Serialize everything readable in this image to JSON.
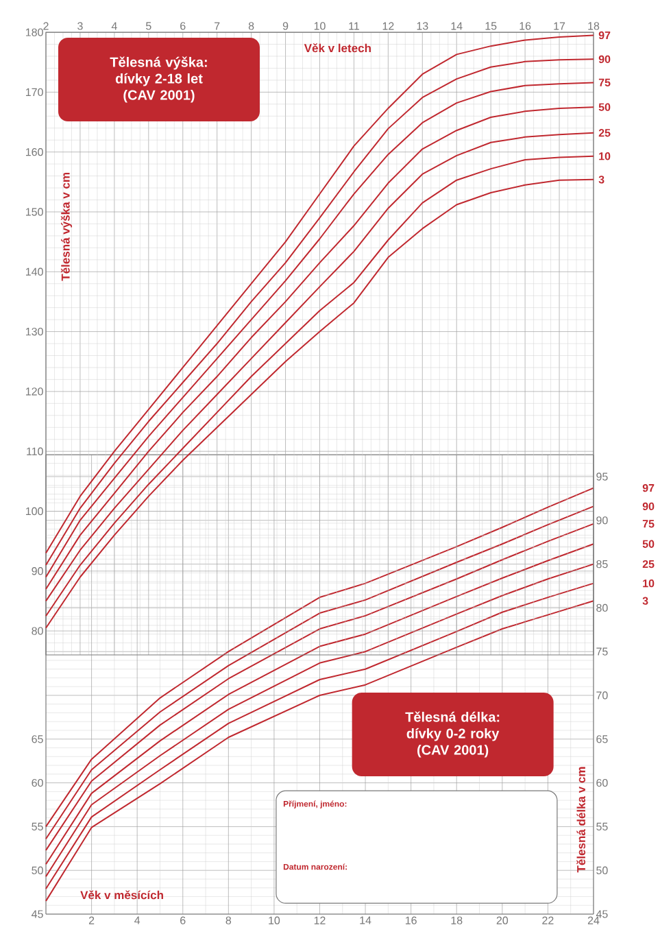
{
  "chart_data": [
    {
      "type": "line",
      "title": "Tělesná výška: dívky 2-18 let (CAV 2001)",
      "xlabel": "Věk v letech",
      "ylabel": "Tělesná výška v cm",
      "x": [
        2,
        3,
        4,
        5,
        6,
        7,
        8,
        9,
        10,
        11,
        12,
        13,
        14,
        15,
        16,
        17,
        18
      ],
      "xlim": [
        2,
        18
      ],
      "xticks": [
        2,
        3,
        4,
        5,
        6,
        7,
        8,
        9,
        10,
        11,
        12,
        13,
        14,
        15,
        16,
        17,
        18
      ],
      "ylim": [
        76,
        180
      ],
      "yticks": [
        80,
        90,
        100,
        110,
        120,
        130,
        140,
        150,
        160,
        170,
        180
      ],
      "grid": true,
      "series": [
        {
          "name": "97",
          "color": "#c0282f",
          "values": [
            93,
            102.5,
            110,
            117,
            124,
            131,
            138,
            145,
            153,
            161,
            167.3,
            173,
            176.3,
            177.7,
            178.7,
            179.2,
            179.5
          ]
        },
        {
          "name": "90",
          "color": "#c0282f",
          "values": [
            91,
            100.5,
            108,
            115,
            121.5,
            128,
            135,
            141.5,
            149,
            156.7,
            163.9,
            169.1,
            172.2,
            174.2,
            175.1,
            175.4,
            175.5
          ]
        },
        {
          "name": "75",
          "color": "#c0282f",
          "values": [
            89,
            98.5,
            105.5,
            112.5,
            119,
            125.5,
            132,
            138.5,
            145.5,
            153,
            159.6,
            164.9,
            168.2,
            170.1,
            171.1,
            171.4,
            171.6
          ]
        },
        {
          "name": "50",
          "color": "#c0282f",
          "values": [
            87,
            96,
            103,
            110,
            116.5,
            122.5,
            129,
            135,
            141.5,
            147.7,
            154.8,
            160.5,
            163.6,
            165.8,
            166.8,
            167.3,
            167.5
          ]
        },
        {
          "name": "25",
          "color": "#c0282f",
          "values": [
            85,
            93.5,
            100.5,
            107,
            113.5,
            119.5,
            125.5,
            131.5,
            137.5,
            143.4,
            150.6,
            156.3,
            159.4,
            161.6,
            162.5,
            162.9,
            163.2
          ]
        },
        {
          "name": "10",
          "color": "#c0282f",
          "values": [
            82.5,
            91,
            98,
            104.5,
            110.5,
            116.5,
            122.5,
            128,
            133.5,
            138.2,
            145.3,
            151.5,
            155.3,
            157.2,
            158.7,
            159.1,
            159.3
          ]
        },
        {
          "name": "3",
          "color": "#c0282f",
          "values": [
            80.5,
            89,
            96,
            102.5,
            108.5,
            114,
            119.5,
            125,
            130,
            134.8,
            142.4,
            147.2,
            151.2,
            153.2,
            154.5,
            155.3,
            155.4
          ]
        }
      ]
    },
    {
      "type": "line",
      "title": "Tělesná délka: dívky 0-2 roky (CAV 2001)",
      "xlabel": "Věk v měsících",
      "y2label": "Tělesná délka v cm",
      "annotations": [
        "Příjmení, jméno:",
        "Datum narození:"
      ],
      "x": [
        0,
        2,
        5,
        8,
        12,
        14,
        18,
        20,
        22,
        24
      ],
      "xlim": [
        0,
        24
      ],
      "xticks": [
        2,
        4,
        6,
        8,
        10,
        12,
        14,
        16,
        18,
        20,
        22,
        24
      ],
      "ylim": [
        45,
        97.5
      ],
      "yticks": [
        45,
        50,
        55,
        60,
        65
      ],
      "y2lim": [
        45,
        97.5
      ],
      "y2ticks": [
        45,
        50,
        55,
        60,
        65,
        70,
        75,
        80,
        85,
        90,
        95
      ],
      "grid": true,
      "series": [
        {
          "name": "97",
          "color": "#c0282f",
          "values": [
            55,
            62.7,
            69.7,
            75,
            81.2,
            82.8,
            87,
            89.2,
            91.5,
            93.7
          ]
        },
        {
          "name": "90",
          "color": "#c0282f",
          "values": [
            53.6,
            61.5,
            68.1,
            73.4,
            79.4,
            80.9,
            85.2,
            87.3,
            89.5,
            91.6
          ]
        },
        {
          "name": "75",
          "color": "#c0282f",
          "values": [
            52.3,
            60.2,
            66.6,
            71.9,
            77.6,
            79.1,
            83.3,
            85.5,
            87.6,
            89.6
          ]
        },
        {
          "name": "50",
          "color": "#c0282f",
          "values": [
            50.7,
            58.8,
            64.8,
            70.1,
            75.6,
            77,
            81.3,
            83.4,
            85.4,
            87.3
          ]
        },
        {
          "name": "25",
          "color": "#c0282f",
          "values": [
            49.3,
            57.5,
            63.1,
            68.4,
            73.7,
            75,
            79.3,
            81.4,
            83.3,
            85
          ]
        },
        {
          "name": "10",
          "color": "#c0282f",
          "values": [
            47.9,
            56.1,
            61.5,
            66.8,
            71.8,
            73,
            77.3,
            79.5,
            81.2,
            82.8
          ]
        },
        {
          "name": "3",
          "color": "#c0282f",
          "values": [
            46.5,
            54.9,
            59.9,
            65.2,
            70,
            71.2,
            75.5,
            77.6,
            79.2,
            80.8
          ]
        }
      ]
    }
  ]
}
